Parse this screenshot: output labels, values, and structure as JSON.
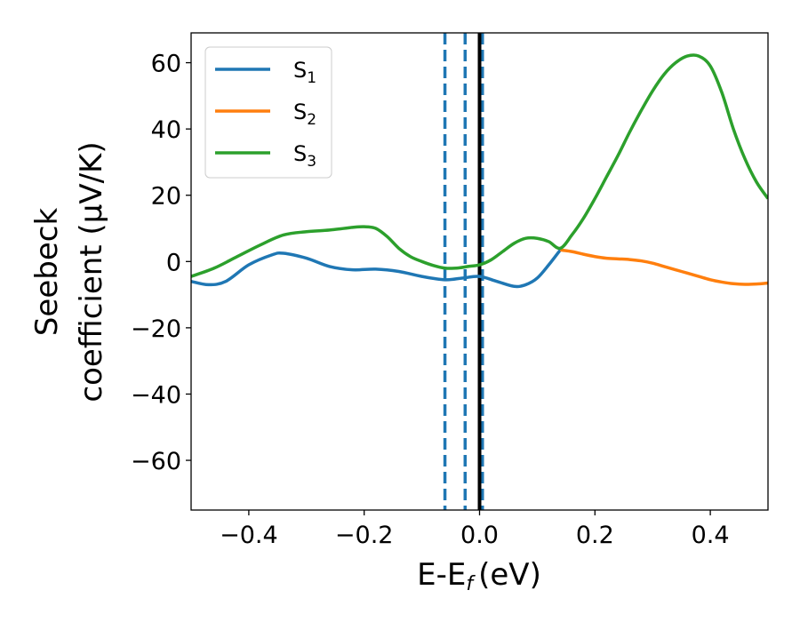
{
  "chart_data": {
    "type": "line",
    "xlabel": "E-E",
    "xlabel_sub": "f",
    "xlabel_unit": "(eV)",
    "ylabel_line1": "Seebeck",
    "ylabel_line2": "coefficient  (μV/K)",
    "xlim": [
      -0.5,
      0.5
    ],
    "ylim": [
      -75,
      69
    ],
    "x_ticks": [
      -0.4,
      -0.2,
      0.0,
      0.2,
      0.4
    ],
    "x_tick_labels": [
      "−0.4",
      "−0.2",
      "0.0",
      "0.2",
      "0.4"
    ],
    "y_ticks": [
      -60,
      -40,
      -20,
      0,
      20,
      40,
      60
    ],
    "y_tick_labels": [
      "−60",
      "−40",
      "−20",
      "0",
      "20",
      "40",
      "60"
    ],
    "legend_position": "upper-left",
    "vlines": [
      {
        "x": -0.06,
        "style": "dashed",
        "color": "#1f77b4"
      },
      {
        "x": -0.025,
        "style": "dashed",
        "color": "#1f77b4"
      },
      {
        "x": 0.005,
        "style": "dashed",
        "color": "#1f77b4"
      },
      {
        "x": 0.0,
        "style": "solid",
        "color": "#000000"
      }
    ],
    "series": [
      {
        "name": "S",
        "sub": "1",
        "color": "#1f77b4",
        "x": [
          -0.5,
          -0.47,
          -0.44,
          -0.4,
          -0.36,
          -0.34,
          -0.3,
          -0.26,
          -0.22,
          -0.18,
          -0.14,
          -0.1,
          -0.06,
          -0.03,
          0.0,
          0.03,
          0.06,
          0.08,
          0.1,
          0.12,
          0.14
        ],
        "y": [
          -6,
          -7,
          -6,
          -1,
          2,
          2.5,
          1,
          -1.5,
          -2.5,
          -2.3,
          -3,
          -4.5,
          -5.5,
          -5,
          -4.5,
          -6,
          -7.5,
          -7,
          -5,
          -1,
          3.5
        ]
      },
      {
        "name": "S",
        "sub": "2",
        "color": "#ff7f0e",
        "x": [
          0.14,
          0.16,
          0.18,
          0.2,
          0.22,
          0.24,
          0.26,
          0.28,
          0.3,
          0.32,
          0.34,
          0.36,
          0.38,
          0.4,
          0.42,
          0.44,
          0.46,
          0.48,
          0.5
        ],
        "y": [
          3.5,
          3,
          2.2,
          1.5,
          1,
          0.8,
          0.6,
          0.2,
          -0.5,
          -1.5,
          -2.5,
          -3.5,
          -4.5,
          -5.5,
          -6.2,
          -6.7,
          -6.9,
          -6.8,
          -6.5
        ]
      },
      {
        "name": "S",
        "sub": "3",
        "color": "#2ca02c",
        "x": [
          -0.5,
          -0.46,
          -0.42,
          -0.38,
          -0.34,
          -0.3,
          -0.26,
          -0.22,
          -0.2,
          -0.18,
          -0.16,
          -0.14,
          -0.12,
          -0.1,
          -0.08,
          -0.06,
          -0.04,
          -0.02,
          0.0,
          0.02,
          0.04,
          0.06,
          0.08,
          0.1,
          0.12,
          0.14,
          0.16,
          0.18,
          0.2,
          0.22,
          0.24,
          0.26,
          0.28,
          0.3,
          0.32,
          0.34,
          0.36,
          0.38,
          0.4,
          0.42,
          0.44,
          0.46,
          0.48,
          0.5
        ],
        "y": [
          -4.5,
          -2,
          1.5,
          5,
          8,
          9,
          9.5,
          10.3,
          10.5,
          10,
          7.5,
          4,
          1.5,
          0,
          -1.2,
          -2,
          -2,
          -1.5,
          -1,
          0.5,
          3,
          5.5,
          7,
          7,
          6,
          4,
          8,
          13,
          19,
          25.5,
          32,
          39,
          45.5,
          51.5,
          56.5,
          60,
          62,
          62,
          59,
          51,
          40,
          31,
          24,
          19
        ]
      }
    ]
  }
}
